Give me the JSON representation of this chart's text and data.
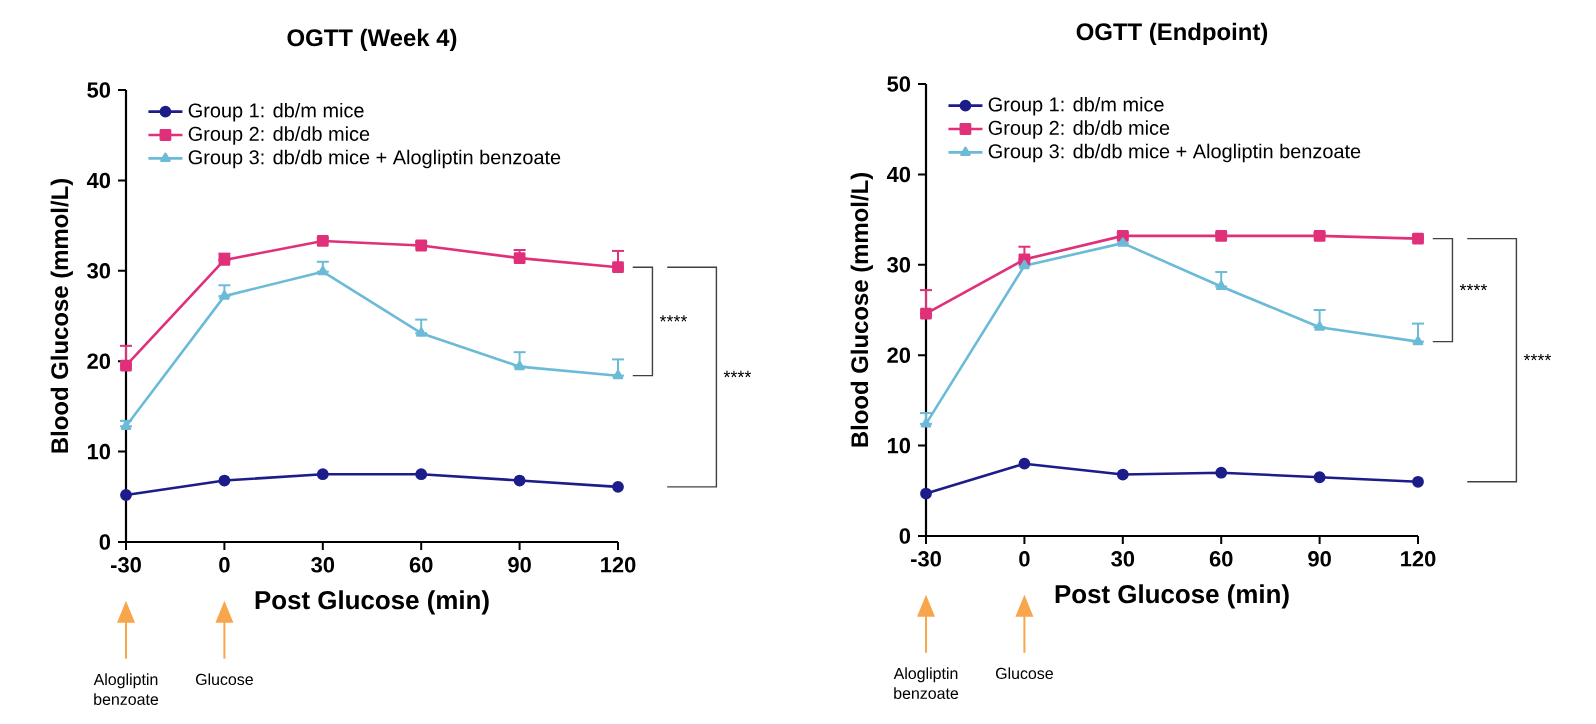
{
  "chart_data": [
    {
      "type": "line",
      "title": "OGTT (Week 4)",
      "xlabel": "Post Glucose (min)",
      "ylabel": "Blood Glucose (mmol/L)",
      "x": [
        -30,
        0,
        30,
        60,
        90,
        120
      ],
      "xlim": [
        -30,
        120
      ],
      "ylim": [
        0,
        50
      ],
      "xticks": [
        -30,
        0,
        30,
        60,
        90,
        120
      ],
      "yticks": [
        0,
        10,
        20,
        30,
        40,
        50
      ],
      "legend": "top left",
      "series": [
        {
          "name": "Group 1: db/m mice",
          "color": "#1c1c8a",
          "marker": "circle",
          "values": [
            5.2,
            6.8,
            7.5,
            7.5,
            6.8,
            6.1
          ]
        },
        {
          "name": "Group 2: db/db mice",
          "color": "#e0307a",
          "marker": "square",
          "values": [
            19.5,
            31.2,
            33.3,
            32.8,
            31.4,
            30.4
          ],
          "errors": [
            [
              19.5,
              21.7
            ],
            [
              31.2,
              31.9
            ],
            [
              33.3,
              33.6
            ],
            [
              32.8,
              33.2
            ],
            [
              31.4,
              32.3
            ],
            [
              30.4,
              32.2
            ]
          ]
        },
        {
          "name": "Group 3: db/db mice + Alogliptin benzoate",
          "color": "#6bbbd8",
          "marker": "triangle",
          "values": [
            12.8,
            27.2,
            29.9,
            23.1,
            19.4,
            18.4
          ],
          "errors": [
            [
              12.8,
              13.4
            ],
            [
              27.2,
              28.4
            ],
            [
              29.9,
              31.0
            ],
            [
              23.1,
              24.6
            ],
            [
              19.4,
              21.0
            ],
            [
              18.4,
              20.2
            ]
          ]
        }
      ],
      "annotations": [
        "****",
        "****",
        "Alogliptin benzoate",
        "Glucose"
      ]
    },
    {
      "type": "line",
      "title": "OGTT (Endpoint)",
      "xlabel": "Post Glucose (min)",
      "ylabel": "Blood Glucose (mmol/L)",
      "x": [
        -30,
        0,
        30,
        60,
        90,
        120
      ],
      "xlim": [
        -30,
        120
      ],
      "ylim": [
        0,
        50
      ],
      "xticks": [
        -30,
        0,
        30,
        60,
        90,
        120
      ],
      "yticks": [
        0,
        10,
        20,
        30,
        40,
        50
      ],
      "legend": "top left",
      "series": [
        {
          "name": "Group 1: db/m mice",
          "color": "#1c1c8a",
          "marker": "circle",
          "values": [
            4.7,
            8.0,
            6.8,
            7.0,
            6.5,
            6.0
          ]
        },
        {
          "name": "Group 2: db/db mice",
          "color": "#e0307a",
          "marker": "square",
          "values": [
            24.6,
            30.6,
            33.2,
            33.2,
            33.2,
            32.9
          ],
          "errors": [
            [
              24.6,
              27.2
            ],
            [
              30.6,
              32.0
            ],
            [
              33.2,
              33.5
            ],
            [
              33.2,
              33.5
            ],
            [
              33.2,
              33.5
            ],
            [
              32.9,
              33.2
            ]
          ]
        },
        {
          "name": "Group 3: db/db mice + Alogliptin benzoate",
          "color": "#6bbbd8",
          "marker": "triangle",
          "values": [
            12.4,
            29.9,
            32.4,
            27.6,
            23.1,
            21.5
          ],
          "errors": [
            [
              12.4,
              13.6
            ],
            [
              29.9,
              30.6
            ],
            [
              32.4,
              32.9
            ],
            [
              27.6,
              29.2
            ],
            [
              23.1,
              25.0
            ],
            [
              21.5,
              23.5
            ]
          ]
        }
      ],
      "annotations": [
        "****",
        "****",
        "Alogliptin benzoate",
        "Glucose"
      ]
    }
  ]
}
